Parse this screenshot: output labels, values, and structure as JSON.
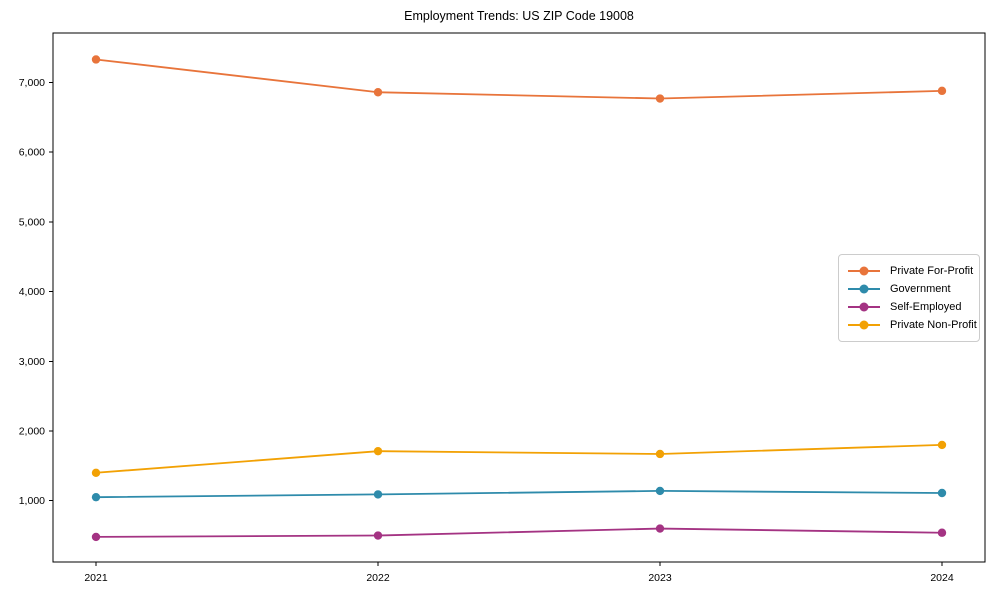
{
  "title": "Employment Trends: US ZIP Code 19008",
  "chart_data": {
    "type": "line",
    "title": "Employment Trends: US ZIP Code 19008",
    "xlabel": "",
    "ylabel": "",
    "categories": [
      "2021",
      "2022",
      "2023",
      "2024"
    ],
    "series": [
      {
        "name": "Private For-Profit",
        "color": "#E8743B",
        "values": [
          7330,
          6860,
          6770,
          6880
        ]
      },
      {
        "name": "Government",
        "color": "#2E8BAB",
        "values": [
          1050,
          1090,
          1140,
          1110
        ]
      },
      {
        "name": "Self-Employed",
        "color": "#A43383",
        "values": [
          480,
          500,
          600,
          540
        ]
      },
      {
        "name": "Private Non-Profit",
        "color": "#F2A104",
        "values": [
          1400,
          1710,
          1670,
          1800
        ]
      }
    ],
    "yticks": [
      1000,
      2000,
      3000,
      4000,
      5000,
      6000,
      7000
    ],
    "ytick_labels": [
      "1,000",
      "2,000",
      "3,000",
      "4,000",
      "5,000",
      "6,000",
      "7,000"
    ],
    "ylim": [
      120,
      7710
    ],
    "xlim": [
      -0.1525,
      3.1525
    ],
    "grid": false,
    "legend_position": "center-right",
    "frame_color": "#000000",
    "tick_color": "#000000",
    "marker_shape": "circle",
    "line_width": 1.8,
    "marker_radius": 4.2
  }
}
